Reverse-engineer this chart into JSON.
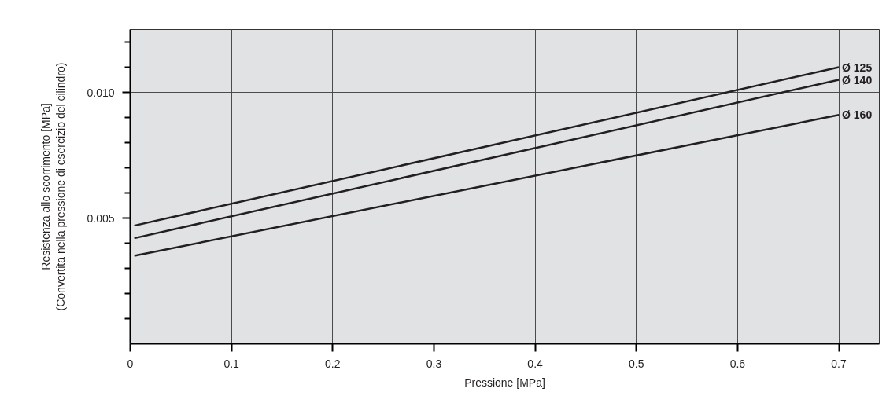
{
  "chart_data": {
    "type": "line",
    "xlabel": "Pressione [MPa]",
    "ylabel": "Resistenza allo scorrimento [MPa]\n(Convertita nella pressione di esercizio del cilindro)",
    "x": [
      0.004,
      0.7
    ],
    "series": [
      {
        "name": "Ø 125",
        "color": "#231f20",
        "values": [
          0.0047,
          0.011
        ]
      },
      {
        "name": "Ø 140",
        "color": "#231f20",
        "values": [
          0.0042,
          0.0105
        ]
      },
      {
        "name": "Ø 160",
        "color": "#231f20",
        "values": [
          0.0035,
          0.0091
        ]
      }
    ],
    "xlim": [
      0,
      0.74
    ],
    "ylim": [
      0,
      0.0125
    ],
    "xticks": [
      0,
      0.1,
      0.2,
      0.3,
      0.4,
      0.5,
      0.6,
      0.7
    ],
    "yticks": [
      {
        "value": 0.001,
        "label": null
      },
      {
        "value": 0.002,
        "label": null
      },
      {
        "value": 0.003,
        "label": null
      },
      {
        "value": 0.004,
        "label": null
      },
      0.005,
      {
        "value": 0.006,
        "label": null
      },
      {
        "value": 0.007,
        "label": null
      },
      {
        "value": 0.008,
        "label": null
      },
      {
        "value": 0.009,
        "label": null
      },
      {
        "value": 0.01,
        "label": "0.010"
      },
      {
        "value": 0.011,
        "label": null
      },
      {
        "value": 0.012,
        "label": null
      }
    ],
    "grid": true,
    "line_style": "solid"
  }
}
